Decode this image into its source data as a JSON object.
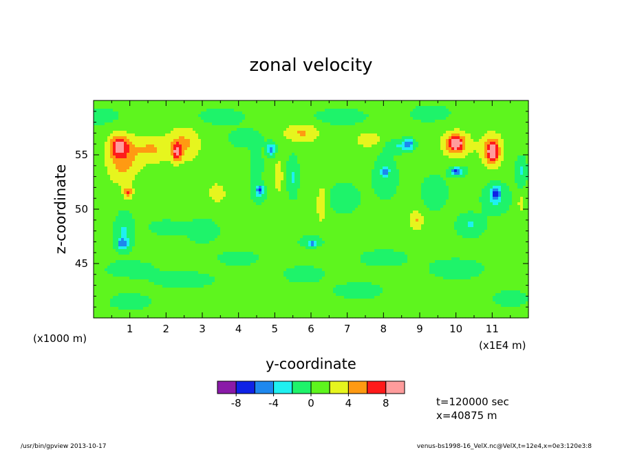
{
  "chart_data": {
    "type": "heatmap",
    "title": "zonal velocity",
    "xlabel": "y-coordinate",
    "ylabel": "z-coordinate",
    "x_unit_label": "(x1E4 m)",
    "y_unit_label": "(x1000 m)",
    "xlim": [
      0,
      12
    ],
    "ylim": [
      40,
      60
    ],
    "x_ticks": [
      "1",
      "2",
      "3",
      "4",
      "5",
      "6",
      "7",
      "8",
      "9",
      "10",
      "11"
    ],
    "y_ticks": [
      "45",
      "50",
      "55"
    ],
    "colorbar": {
      "levels": [
        -10,
        -8,
        -6,
        -4,
        -2,
        0,
        2,
        4,
        6,
        8,
        10
      ],
      "tick_labels": [
        "-8",
        "-4",
        "0",
        "4",
        "8"
      ],
      "colors": [
        "#8a1aa8",
        "#0f22e6",
        "#1e88ee",
        "#1ff0f0",
        "#1ef36a",
        "#5ef51e",
        "#e6f51e",
        "#ff9a12",
        "#ff1a1a",
        "#ff9c9c"
      ]
    },
    "background_color": "#5ef51e",
    "blobs": [
      {
        "x": 0.8,
        "y": 54.5,
        "sx": 0.45,
        "sy": 2.2,
        "v": 4.2
      },
      {
        "x": 0.7,
        "y": 55.8,
        "sx": 0.25,
        "sy": 0.9,
        "v": 6.4
      },
      {
        "x": 1.6,
        "y": 55.5,
        "sx": 0.5,
        "sy": 1.3,
        "v": 3.5
      },
      {
        "x": 2.5,
        "y": 56.0,
        "sx": 0.45,
        "sy": 1.6,
        "v": 3.8
      },
      {
        "x": 2.3,
        "y": 55.2,
        "sx": 0.12,
        "sy": 0.8,
        "v": 6.2
      },
      {
        "x": 0.95,
        "y": 51.5,
        "sx": 0.12,
        "sy": 0.5,
        "v": 5.5
      },
      {
        "x": 3.4,
        "y": 51.5,
        "sx": 0.25,
        "sy": 0.9,
        "v": 3.0
      },
      {
        "x": 0.85,
        "y": 48.0,
        "sx": 0.25,
        "sy": 1.6,
        "v": -2.8
      },
      {
        "x": 0.8,
        "y": 46.8,
        "sx": 0.15,
        "sy": 0.5,
        "v": -5.2
      },
      {
        "x": 2.0,
        "y": 48.3,
        "sx": 0.4,
        "sy": 0.6,
        "v": -2.4
      },
      {
        "x": 4.5,
        "y": 54.0,
        "sx": 0.15,
        "sy": 1.5,
        "v": -2.6
      },
      {
        "x": 4.55,
        "y": 51.5,
        "sx": 0.2,
        "sy": 0.8,
        "v": -3.0
      },
      {
        "x": 4.6,
        "y": 51.8,
        "sx": 0.08,
        "sy": 0.3,
        "v": -5.0
      },
      {
        "x": 4.9,
        "y": 55.5,
        "sx": 0.12,
        "sy": 0.6,
        "v": -5.3
      },
      {
        "x": 5.1,
        "y": 53.0,
        "sx": 0.12,
        "sy": 1.5,
        "v": 3.2
      },
      {
        "x": 5.5,
        "y": 53.0,
        "sx": 0.15,
        "sy": 1.8,
        "v": -2.8
      },
      {
        "x": 5.75,
        "y": 57.0,
        "sx": 0.5,
        "sy": 0.9,
        "v": 3.6
      },
      {
        "x": 6.0,
        "y": 47.0,
        "sx": 0.3,
        "sy": 0.5,
        "v": -2.6
      },
      {
        "x": 6.05,
        "y": 46.8,
        "sx": 0.08,
        "sy": 0.2,
        "v": -5.3
      },
      {
        "x": 6.3,
        "y": 50.5,
        "sx": 0.15,
        "sy": 1.8,
        "v": 3.2
      },
      {
        "x": 7.6,
        "y": 56.4,
        "sx": 0.35,
        "sy": 0.7,
        "v": 3.2
      },
      {
        "x": 8.4,
        "y": 55.8,
        "sx": 0.35,
        "sy": 0.6,
        "v": -2.6
      },
      {
        "x": 8.05,
        "y": 53.0,
        "sx": 0.3,
        "sy": 1.8,
        "v": -2.6
      },
      {
        "x": 8.05,
        "y": 53.5,
        "sx": 0.08,
        "sy": 0.3,
        "v": -5.0
      },
      {
        "x": 8.9,
        "y": 49.0,
        "sx": 0.2,
        "sy": 1.0,
        "v": 3.6
      },
      {
        "x": 8.7,
        "y": 56.0,
        "sx": 0.15,
        "sy": 0.5,
        "v": -5.2
      },
      {
        "x": 10.0,
        "y": 56.0,
        "sx": 0.45,
        "sy": 1.3,
        "v": 3.8
      },
      {
        "x": 10.0,
        "y": 56.0,
        "sx": 0.2,
        "sy": 0.7,
        "v": 6.5
      },
      {
        "x": 11.0,
        "y": 55.5,
        "sx": 0.35,
        "sy": 1.6,
        "v": 3.8
      },
      {
        "x": 11.0,
        "y": 55.2,
        "sx": 0.15,
        "sy": 1.0,
        "v": 6.6
      },
      {
        "x": 11.1,
        "y": 51.0,
        "sx": 0.35,
        "sy": 1.3,
        "v": -2.8
      },
      {
        "x": 11.1,
        "y": 51.5,
        "sx": 0.12,
        "sy": 0.7,
        "v": -5.4
      },
      {
        "x": 10.05,
        "y": 53.5,
        "sx": 0.25,
        "sy": 0.5,
        "v": -2.8
      },
      {
        "x": 10.0,
        "y": 53.5,
        "sx": 0.12,
        "sy": 0.3,
        "v": -5.0
      },
      {
        "x": 11.8,
        "y": 53.5,
        "sx": 0.15,
        "sy": 1.2,
        "v": -3.0
      },
      {
        "x": 10.4,
        "y": 48.5,
        "sx": 0.35,
        "sy": 1.0,
        "v": -2.8
      },
      {
        "x": 11.8,
        "y": 50.5,
        "sx": 0.08,
        "sy": 0.6,
        "v": 3.4
      },
      {
        "x": 1.0,
        "y": 44.5,
        "sx": 0.7,
        "sy": 0.8,
        "v": -1.5
      },
      {
        "x": 2.5,
        "y": 43.5,
        "sx": 0.9,
        "sy": 0.8,
        "v": -1.5
      },
      {
        "x": 4.0,
        "y": 45.5,
        "sx": 0.6,
        "sy": 0.7,
        "v": -1.5
      },
      {
        "x": 5.8,
        "y": 44.0,
        "sx": 0.6,
        "sy": 0.8,
        "v": -1.5
      },
      {
        "x": 7.3,
        "y": 42.5,
        "sx": 0.7,
        "sy": 0.8,
        "v": -1.5
      },
      {
        "x": 8.0,
        "y": 45.5,
        "sx": 0.7,
        "sy": 0.8,
        "v": -1.5
      },
      {
        "x": 10.0,
        "y": 44.5,
        "sx": 0.8,
        "sy": 1.0,
        "v": -1.5
      },
      {
        "x": 1.0,
        "y": 41.5,
        "sx": 0.6,
        "sy": 0.8,
        "v": -1.5
      },
      {
        "x": 11.5,
        "y": 41.8,
        "sx": 0.5,
        "sy": 0.8,
        "v": -1.5
      },
      {
        "x": 0.2,
        "y": 58.5,
        "sx": 0.6,
        "sy": 0.8,
        "v": -1.5
      },
      {
        "x": 3.5,
        "y": 58.5,
        "sx": 0.7,
        "sy": 0.8,
        "v": -1.5
      },
      {
        "x": 6.8,
        "y": 58.5,
        "sx": 0.8,
        "sy": 0.8,
        "v": -1.5
      },
      {
        "x": 9.3,
        "y": 58.8,
        "sx": 0.6,
        "sy": 0.8,
        "v": -1.5
      },
      {
        "x": 3.0,
        "y": 48.0,
        "sx": 0.5,
        "sy": 1.2,
        "v": -1.5
      },
      {
        "x": 6.9,
        "y": 51.0,
        "sx": 0.5,
        "sy": 1.5,
        "v": -1.5
      },
      {
        "x": 4.2,
        "y": 56.5,
        "sx": 0.5,
        "sy": 0.9,
        "v": -1.5
      },
      {
        "x": 9.4,
        "y": 51.5,
        "sx": 0.4,
        "sy": 1.8,
        "v": -1.5
      }
    ]
  },
  "info": {
    "time_label": "t=120000 sec",
    "x_label": "x=40875 m"
  },
  "footer": {
    "left": "/usr/bin/gpview  2013-10-17",
    "right": "venus-bs1998-16_VelX.nc@VelX,t=12e4,x=0e3:120e3:8"
  }
}
